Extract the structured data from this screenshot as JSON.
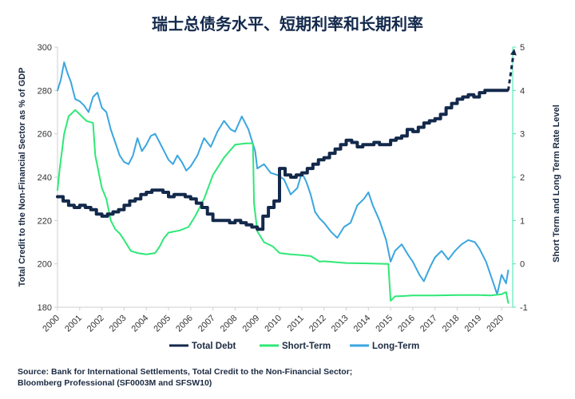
{
  "chart_data": {
    "type": "line",
    "title": "瑞士总债务水平、短期利率和长期利率",
    "y_left_label": "Total Credit to the Non-Financial Sector as % of GDP",
    "y_right_label": "Short Term and Long Term Rate Level",
    "y_left_lim": [
      180,
      300
    ],
    "y_left_ticks": [
      "180",
      "200",
      "220",
      "240",
      "260",
      "280",
      "300"
    ],
    "y_right_lim": [
      -1,
      5
    ],
    "y_right_ticks": [
      "-1",
      "0",
      "1",
      "2",
      "3",
      "4",
      "5"
    ],
    "x_lim": [
      2000,
      2020.5
    ],
    "x_ticks": [
      "2000",
      "2001",
      "2002",
      "2003",
      "2004",
      "2005",
      "2006",
      "2007",
      "2008",
      "2009",
      "2010",
      "2011",
      "2012",
      "2013",
      "2014",
      "2015",
      "2016",
      "2017",
      "2018",
      "2019",
      "2020"
    ],
    "grid": false,
    "legend_position": "bottom",
    "series": [
      {
        "name": "Total Debt",
        "axis": "left",
        "color": "#13294b",
        "step": true,
        "points": [
          [
            2000.0,
            231
          ],
          [
            2000.25,
            229
          ],
          [
            2000.5,
            227
          ],
          [
            2000.75,
            226
          ],
          [
            2001.0,
            227
          ],
          [
            2001.25,
            226
          ],
          [
            2001.5,
            225
          ],
          [
            2001.75,
            223
          ],
          [
            2002.0,
            222
          ],
          [
            2002.25,
            223
          ],
          [
            2002.5,
            224
          ],
          [
            2002.75,
            225
          ],
          [
            2003.0,
            227
          ],
          [
            2003.25,
            229
          ],
          [
            2003.5,
            230
          ],
          [
            2003.75,
            232
          ],
          [
            2004.0,
            233
          ],
          [
            2004.25,
            234
          ],
          [
            2004.5,
            234
          ],
          [
            2004.75,
            233
          ],
          [
            2005.0,
            231
          ],
          [
            2005.25,
            232
          ],
          [
            2005.5,
            232
          ],
          [
            2005.75,
            231
          ],
          [
            2006.0,
            230
          ],
          [
            2006.25,
            228
          ],
          [
            2006.5,
            226
          ],
          [
            2006.75,
            223
          ],
          [
            2007.0,
            220
          ],
          [
            2007.25,
            220
          ],
          [
            2007.5,
            220
          ],
          [
            2007.75,
            219
          ],
          [
            2008.0,
            220
          ],
          [
            2008.25,
            219
          ],
          [
            2008.5,
            218
          ],
          [
            2008.75,
            217
          ],
          [
            2009.0,
            216
          ],
          [
            2009.25,
            222
          ],
          [
            2009.5,
            226
          ],
          [
            2009.75,
            229
          ],
          [
            2010.0,
            244
          ],
          [
            2010.25,
            241
          ],
          [
            2010.5,
            240
          ],
          [
            2010.75,
            241
          ],
          [
            2011.0,
            242
          ],
          [
            2011.25,
            244
          ],
          [
            2011.5,
            246
          ],
          [
            2011.75,
            248
          ],
          [
            2012.0,
            249
          ],
          [
            2012.25,
            251
          ],
          [
            2012.5,
            253
          ],
          [
            2012.75,
            255
          ],
          [
            2013.0,
            257
          ],
          [
            2013.25,
            256
          ],
          [
            2013.5,
            254
          ],
          [
            2013.75,
            255
          ],
          [
            2014.0,
            255
          ],
          [
            2014.25,
            256
          ],
          [
            2014.5,
            255
          ],
          [
            2014.75,
            255
          ],
          [
            2015.0,
            257
          ],
          [
            2015.25,
            258
          ],
          [
            2015.5,
            259
          ],
          [
            2015.75,
            262
          ],
          [
            2016.0,
            261
          ],
          [
            2016.25,
            263
          ],
          [
            2016.5,
            265
          ],
          [
            2016.75,
            266
          ],
          [
            2017.0,
            267
          ],
          [
            2017.25,
            269
          ],
          [
            2017.5,
            272
          ],
          [
            2017.75,
            274
          ],
          [
            2018.0,
            276
          ],
          [
            2018.25,
            277
          ],
          [
            2018.5,
            278
          ],
          [
            2018.75,
            277
          ],
          [
            2019.0,
            279
          ],
          [
            2019.25,
            280
          ],
          [
            2019.5,
            280
          ],
          [
            2019.75,
            280
          ],
          [
            2020.0,
            280
          ],
          [
            2020.25,
            280
          ]
        ]
      },
      {
        "name": "Short-Term",
        "axis": "right",
        "color": "#2ee876",
        "step": false,
        "points": [
          [
            2000.0,
            1.7
          ],
          [
            2000.1,
            2.2
          ],
          [
            2000.3,
            3.0
          ],
          [
            2000.5,
            3.4
          ],
          [
            2000.8,
            3.55
          ],
          [
            2001.0,
            3.45
          ],
          [
            2001.3,
            3.3
          ],
          [
            2001.6,
            3.25
          ],
          [
            2001.7,
            2.5
          ],
          [
            2001.9,
            2.0
          ],
          [
            2002.0,
            1.75
          ],
          [
            2002.2,
            1.5
          ],
          [
            2002.4,
            1.0
          ],
          [
            2002.6,
            0.8
          ],
          [
            2002.8,
            0.7
          ],
          [
            2003.0,
            0.55
          ],
          [
            2003.3,
            0.3
          ],
          [
            2003.6,
            0.25
          ],
          [
            2004.0,
            0.22
          ],
          [
            2004.4,
            0.25
          ],
          [
            2004.6,
            0.4
          ],
          [
            2004.8,
            0.6
          ],
          [
            2005.0,
            0.72
          ],
          [
            2005.5,
            0.77
          ],
          [
            2005.9,
            0.85
          ],
          [
            2006.2,
            1.1
          ],
          [
            2006.6,
            1.5
          ],
          [
            2007.0,
            2.05
          ],
          [
            2007.5,
            2.45
          ],
          [
            2008.0,
            2.75
          ],
          [
            2008.5,
            2.78
          ],
          [
            2008.8,
            2.78
          ],
          [
            2008.85,
            1.4
          ],
          [
            2009.0,
            0.75
          ],
          [
            2009.3,
            0.5
          ],
          [
            2009.7,
            0.4
          ],
          [
            2010.0,
            0.25
          ],
          [
            2010.5,
            0.22
          ],
          [
            2011.0,
            0.2
          ],
          [
            2011.4,
            0.18
          ],
          [
            2011.6,
            0.12
          ],
          [
            2011.8,
            0.05
          ],
          [
            2012.0,
            0.06
          ],
          [
            2013.0,
            0.02
          ],
          [
            2014.0,
            0.01
          ],
          [
            2014.9,
            0.0
          ],
          [
            2015.0,
            -0.85
          ],
          [
            2015.2,
            -0.75
          ],
          [
            2016.0,
            -0.73
          ],
          [
            2017.0,
            -0.73
          ],
          [
            2018.0,
            -0.72
          ],
          [
            2019.0,
            -0.72
          ],
          [
            2019.5,
            -0.73
          ],
          [
            2020.0,
            -0.7
          ],
          [
            2020.2,
            -0.65
          ],
          [
            2020.3,
            -0.9
          ]
        ]
      },
      {
        "name": "Long-Term",
        "axis": "right",
        "color": "#3aa6df",
        "step": false,
        "points": [
          [
            2000.0,
            4.0
          ],
          [
            2000.15,
            4.25
          ],
          [
            2000.3,
            4.65
          ],
          [
            2000.45,
            4.4
          ],
          [
            2000.6,
            4.2
          ],
          [
            2000.8,
            3.8
          ],
          [
            2001.0,
            3.75
          ],
          [
            2001.2,
            3.65
          ],
          [
            2001.4,
            3.5
          ],
          [
            2001.6,
            3.85
          ],
          [
            2001.8,
            3.95
          ],
          [
            2002.0,
            3.6
          ],
          [
            2002.2,
            3.5
          ],
          [
            2002.4,
            3.1
          ],
          [
            2002.6,
            2.8
          ],
          [
            2002.8,
            2.5
          ],
          [
            2003.0,
            2.35
          ],
          [
            2003.2,
            2.3
          ],
          [
            2003.4,
            2.5
          ],
          [
            2003.6,
            2.9
          ],
          [
            2003.8,
            2.6
          ],
          [
            2004.0,
            2.75
          ],
          [
            2004.2,
            2.95
          ],
          [
            2004.4,
            3.0
          ],
          [
            2004.6,
            2.8
          ],
          [
            2004.8,
            2.6
          ],
          [
            2005.0,
            2.4
          ],
          [
            2005.2,
            2.3
          ],
          [
            2005.4,
            2.5
          ],
          [
            2005.6,
            2.35
          ],
          [
            2005.8,
            2.15
          ],
          [
            2006.0,
            2.25
          ],
          [
            2006.3,
            2.5
          ],
          [
            2006.6,
            2.9
          ],
          [
            2006.9,
            2.7
          ],
          [
            2007.2,
            3.05
          ],
          [
            2007.5,
            3.3
          ],
          [
            2007.8,
            3.1
          ],
          [
            2008.0,
            3.05
          ],
          [
            2008.3,
            3.4
          ],
          [
            2008.6,
            3.1
          ],
          [
            2008.9,
            2.6
          ],
          [
            2009.0,
            2.2
          ],
          [
            2009.3,
            2.3
          ],
          [
            2009.6,
            2.1
          ],
          [
            2009.9,
            2.05
          ],
          [
            2010.2,
            1.95
          ],
          [
            2010.5,
            1.6
          ],
          [
            2010.8,
            1.75
          ],
          [
            2011.0,
            2.1
          ],
          [
            2011.2,
            1.9
          ],
          [
            2011.4,
            1.6
          ],
          [
            2011.6,
            1.2
          ],
          [
            2011.8,
            1.05
          ],
          [
            2012.0,
            0.95
          ],
          [
            2012.3,
            0.75
          ],
          [
            2012.6,
            0.6
          ],
          [
            2012.9,
            0.85
          ],
          [
            2013.2,
            0.95
          ],
          [
            2013.5,
            1.35
          ],
          [
            2013.8,
            1.5
          ],
          [
            2014.0,
            1.65
          ],
          [
            2014.2,
            1.35
          ],
          [
            2014.5,
            1.0
          ],
          [
            2014.8,
            0.55
          ],
          [
            2015.0,
            0.05
          ],
          [
            2015.2,
            0.3
          ],
          [
            2015.5,
            0.45
          ],
          [
            2015.8,
            0.2
          ],
          [
            2016.0,
            0.05
          ],
          [
            2016.3,
            -0.25
          ],
          [
            2016.5,
            -0.4
          ],
          [
            2016.8,
            -0.05
          ],
          [
            2017.0,
            0.15
          ],
          [
            2017.3,
            0.3
          ],
          [
            2017.6,
            0.1
          ],
          [
            2017.9,
            0.3
          ],
          [
            2018.2,
            0.45
          ],
          [
            2018.5,
            0.55
          ],
          [
            2018.8,
            0.5
          ],
          [
            2019.0,
            0.35
          ],
          [
            2019.3,
            0.05
          ],
          [
            2019.6,
            -0.4
          ],
          [
            2019.8,
            -0.7
          ],
          [
            2020.0,
            -0.25
          ],
          [
            2020.2,
            -0.45
          ],
          [
            2020.3,
            -0.15
          ]
        ]
      }
    ],
    "projection": {
      "series": "Total Debt",
      "from": [
        2020.3,
        280
      ],
      "to": [
        2020.55,
        300
      ]
    }
  },
  "source_line1": "Source: Bank for International Settlements, Total Credit to the Non-Financial Sector;",
  "source_line2": "Bloomberg Professional (SF0003M and SFSW10)"
}
